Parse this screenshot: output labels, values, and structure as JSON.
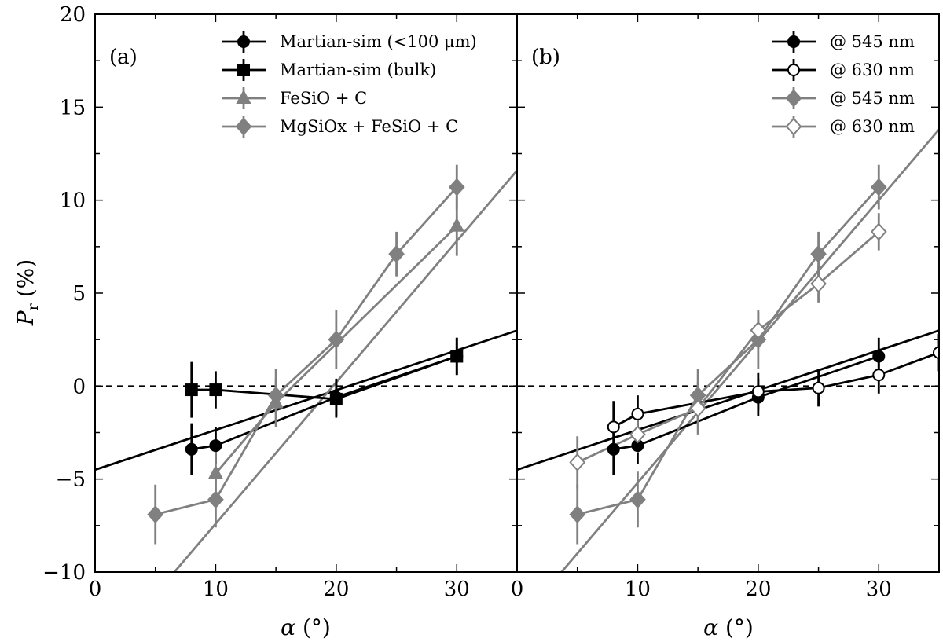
{
  "y_axis_label_symbol": "P",
  "y_axis_label_subscript": "r",
  "y_axis_label_unit": "(%)",
  "x_axis_label_symbol": "α",
  "x_axis_label_unit": "(°)",
  "colors": {
    "black": "#000000",
    "gray": "#808080",
    "white": "#ffffff"
  },
  "chart_data": [
    {
      "type": "line",
      "panel_label": "(a)",
      "xlabel": "α (°)",
      "ylabel": "Pr (%)",
      "xlim": [
        0,
        35
      ],
      "ylim": [
        -10,
        20
      ],
      "xticks": [
        0,
        10,
        20,
        30
      ],
      "yticks": [
        -10,
        -5,
        0,
        5,
        10,
        15,
        20
      ],
      "xtick_labels": [
        "0",
        "10",
        "20",
        "30"
      ],
      "ytick_labels": [
        "−10",
        "−5",
        "0",
        "5",
        "10",
        "15",
        "20"
      ],
      "zero_line": "dashed",
      "grid": false,
      "legend_position": "top-right",
      "series": [
        {
          "name": "Martian-sim (<100 μm)",
          "color": "#000000",
          "marker": "circle",
          "fill": "filled",
          "x": [
            8,
            10,
            20,
            30
          ],
          "y": [
            -3.4,
            -3.2,
            -0.6,
            1.6
          ],
          "yerr": [
            1.4,
            1.0,
            1.0,
            1.0
          ],
          "fit_line": {
            "slope": 0.214,
            "intercept": -4.5
          }
        },
        {
          "name": "Martian-sim (bulk)",
          "color": "#000000",
          "marker": "square",
          "fill": "filled",
          "x": [
            8,
            10,
            20,
            30
          ],
          "y": [
            -0.2,
            -0.2,
            -0.7,
            1.6
          ],
          "yerr": [
            1.5,
            1.0,
            1.0,
            1.0
          ]
        },
        {
          "name": "FeSiO + C",
          "color": "#808080",
          "marker": "triangle",
          "fill": "filled",
          "x": [
            10,
            15,
            30
          ],
          "y": [
            -4.7,
            -0.9,
            8.6
          ],
          "yerr": [
            1.4,
            1.3,
            1.6
          ],
          "fit_line": {
            "slope": 0.76,
            "intercept": -15.0
          }
        },
        {
          "name": "MgSiOx + FeSiO + C",
          "color": "#808080",
          "marker": "diamond",
          "fill": "filled",
          "x": [
            5,
            10,
            15,
            20,
            25,
            30
          ],
          "y": [
            -6.9,
            -6.1,
            -0.5,
            2.5,
            7.1,
            10.7
          ],
          "yerr": [
            1.6,
            1.5,
            1.4,
            1.6,
            1.2,
            1.2
          ]
        }
      ]
    },
    {
      "type": "line",
      "panel_label": "(b)",
      "xlabel": "α (°)",
      "xlim": [
        0,
        35
      ],
      "ylim": [
        -10,
        20
      ],
      "xticks": [
        0,
        10,
        20,
        30
      ],
      "xtick_labels": [
        "0",
        "10",
        "20",
        "30"
      ],
      "zero_line": "dashed",
      "grid": false,
      "legend_position": "top-right",
      "series": [
        {
          "name": "@ 545 nm",
          "color": "#000000",
          "marker": "circle",
          "fill": "filled",
          "x": [
            8,
            10,
            20,
            30
          ],
          "y": [
            -3.4,
            -3.2,
            -0.6,
            1.6
          ],
          "yerr": [
            1.4,
            1.0,
            1.0,
            1.0
          ],
          "fit_line": {
            "slope": 0.214,
            "intercept": -4.5
          }
        },
        {
          "name": "@ 630 nm",
          "color": "#000000",
          "marker": "circle",
          "fill": "open",
          "x": [
            8,
            10,
            20,
            25,
            30,
            35
          ],
          "y": [
            -2.2,
            -1.5,
            -0.3,
            -0.1,
            0.6,
            1.8
          ],
          "yerr": [
            1.4,
            1.0,
            1.0,
            1.0,
            1.0,
            1.0
          ]
        },
        {
          "name": "@ 545 nm",
          "color": "#808080",
          "marker": "diamond",
          "fill": "filled",
          "x": [
            5,
            10,
            15,
            20,
            25,
            30
          ],
          "y": [
            -6.9,
            -6.1,
            -0.5,
            2.5,
            7.1,
            10.7
          ],
          "yerr": [
            1.6,
            1.5,
            1.4,
            1.6,
            1.2,
            1.2
          ],
          "fit_line": {
            "slope": 0.76,
            "intercept": -12.8
          }
        },
        {
          "name": "@ 630 nm",
          "color": "#808080",
          "marker": "diamond",
          "fill": "open",
          "x": [
            5,
            10,
            15,
            20,
            25,
            30
          ],
          "y": [
            -4.1,
            -2.6,
            -1.2,
            3.0,
            5.5,
            8.3
          ],
          "yerr": [
            1.4,
            1.0,
            1.4,
            1.0,
            1.0,
            1.0
          ]
        }
      ]
    }
  ]
}
